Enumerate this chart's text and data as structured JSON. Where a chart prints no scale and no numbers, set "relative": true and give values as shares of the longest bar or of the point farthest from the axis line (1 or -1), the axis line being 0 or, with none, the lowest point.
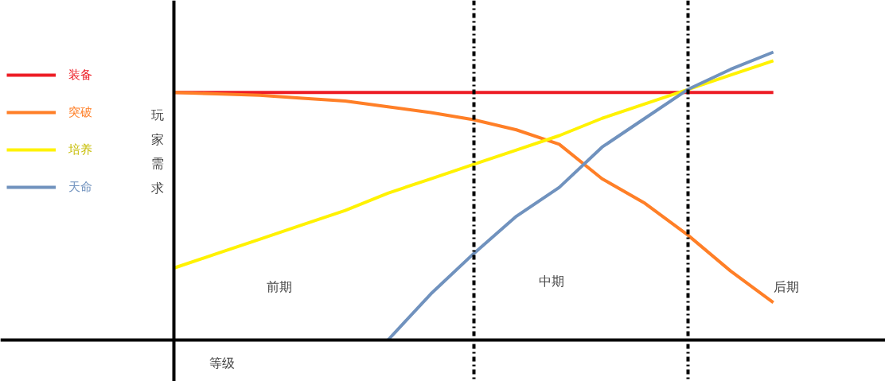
{
  "chart_data": {
    "type": "line",
    "relative": true,
    "xlabel": "等级",
    "ylabel": "玩家需求",
    "legend": "left",
    "categories": [
      null,
      null,
      null,
      null,
      null,
      null,
      null,
      null,
      null,
      null,
      null,
      null,
      null,
      null,
      null
    ],
    "series": [
      {
        "name": "装备",
        "color": "#ed1c24",
        "values": [
          0.86,
          0.86,
          0.86,
          0.86,
          0.86,
          0.86,
          0.86,
          0.86,
          0.86,
          0.86,
          0.86,
          0.86,
          0.86,
          0.86,
          0.86
        ]
      },
      {
        "name": "突破",
        "color": "#ff7f27",
        "values": [
          0.86,
          0.855,
          0.85,
          0.84,
          0.83,
          0.81,
          0.79,
          0.765,
          0.73,
          0.68,
          0.56,
          0.475,
          0.365,
          0.24,
          0.13
        ]
      },
      {
        "name": "培养",
        "color": "#fff200",
        "values": [
          0.25,
          0.3,
          0.35,
          0.4,
          0.45,
          0.51,
          0.56,
          0.61,
          0.66,
          0.71,
          0.77,
          0.82,
          0.87,
          0.92,
          0.97
        ]
      },
      {
        "name": "天命",
        "color": "#7092be",
        "values": [
          null,
          null,
          null,
          null,
          null,
          0.0,
          0.16,
          0.3,
          0.43,
          0.53,
          0.67,
          0.77,
          0.87,
          0.94,
          1.0
        ]
      }
    ],
    "annotations": [
      "前期",
      "中期",
      "后期"
    ]
  }
}
